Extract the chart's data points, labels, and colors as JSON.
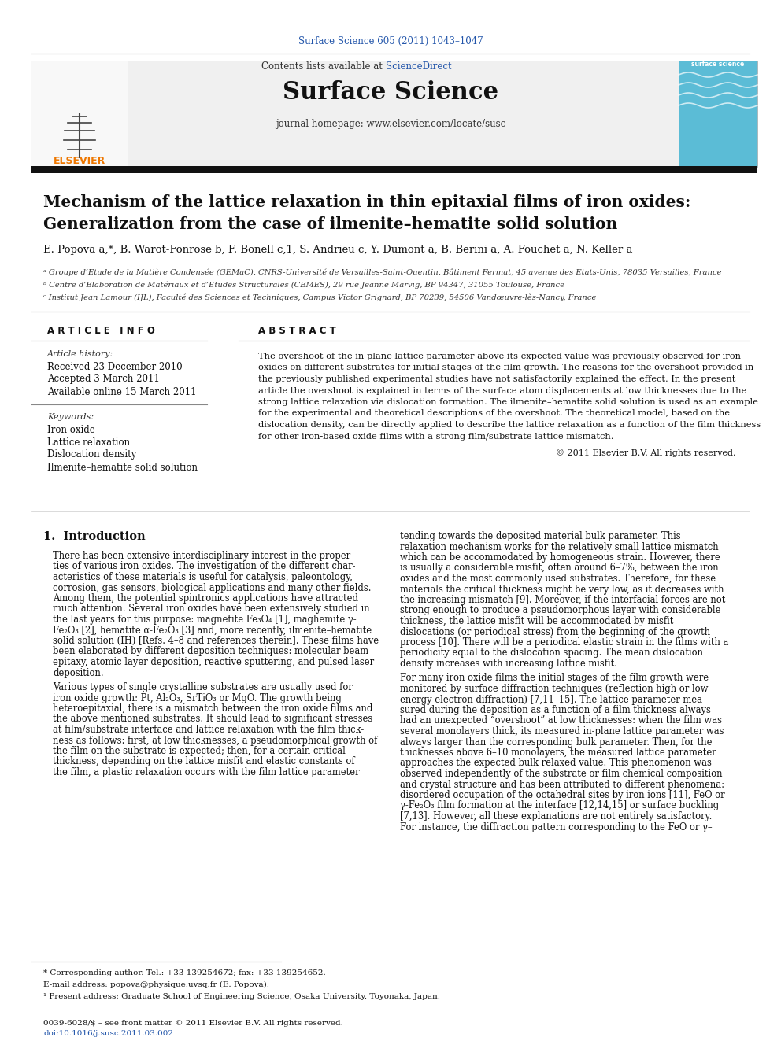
{
  "journal_ref": "Surface Science 605 (2011) 1043–1047",
  "journal_name": "Surface Science",
  "contents_text": "Contents lists available at ",
  "sciencedirect": "ScienceDirect",
  "journal_homepage": "journal homepage: www.elsevier.com/locate/susc",
  "title_line1": "Mechanism of the lattice relaxation in thin epitaxial films of iron oxides:",
  "title_line2": "Generalization from the case of ilmenite–hematite solid solution",
  "authors": "E. Popova a,*, B. Warot-Fonrose b, F. Bonell c,1, S. Andrieu c, Y. Dumont a, B. Berini a, A. Fouchet a, N. Keller a",
  "affil_a": "ᵃ Groupe d’Etude de la Matière Condensée (GEMaC), CNRS-Université de Versailles-Saint-Quentin, Bâtiment Fermat, 45 avenue des Etats-Unis, 78035 Versailles, France",
  "affil_b": "ᵇ Centre d’Elaboration de Matériaux et d’Etudes Structurales (CEMES), 29 rue Jeanne Marvig, BP 94347, 31055 Toulouse, France",
  "affil_c": "ᶜ Institut Jean Lamour (IJL), Faculté des Sciences et Techniques, Campus Victor Grignard, BP 70239, 54506 Vandœuvre-lès-Nancy, France",
  "article_info_header": "A R T I C L E   I N F O",
  "abstract_header": "A B S T R A C T",
  "article_history_label": "Article history:",
  "received": "Received 23 December 2010",
  "accepted": "Accepted 3 March 2011",
  "available": "Available online 15 March 2011",
  "keywords_label": "Keywords:",
  "keywords": [
    "Iron oxide",
    "Lattice relaxation",
    "Dislocation density",
    "Ilmenite–hematite solid solution"
  ],
  "abstract_lines": [
    "The overshoot of the in-plane lattice parameter above its expected value was previously observed for iron",
    "oxides on different substrates for initial stages of the film growth. The reasons for the overshoot provided in",
    "the previously published experimental studies have not satisfactorily explained the effect. In the present",
    "article the overshoot is explained in terms of the surface atom displacements at low thicknesses due to the",
    "strong lattice relaxation via dislocation formation. The ilmenite–hematite solid solution is used as an example",
    "for the experimental and theoretical descriptions of the overshoot. The theoretical model, based on the",
    "dislocation density, can be directly applied to describe the lattice relaxation as a function of the film thickness",
    "for other iron-based oxide films with a strong film/substrate lattice mismatch."
  ],
  "copyright": "© 2011 Elsevier B.V. All rights reserved.",
  "intro_header": "1.  Introduction",
  "intro1_lines": [
    "There has been extensive interdisciplinary interest in the proper-",
    "ties of various iron oxides. The investigation of the different char-",
    "acteristics of these materials is useful for catalysis, paleontology,",
    "corrosion, gas sensors, biological applications and many other fields.",
    "Among them, the potential spintronics applications have attracted",
    "much attention. Several iron oxides have been extensively studied in",
    "the last years for this purpose: magnetite Fe₃O₄ [1], maghemite γ-",
    "Fe₂O₃ [2], hematite α-Fe₂O₃ [3] and, more recently, ilmenite–hematite",
    "solid solution (IH) [Refs. 4–8 and references therein]. These films have",
    "been elaborated by different deposition techniques: molecular beam",
    "epitaxy, atomic layer deposition, reactive sputtering, and pulsed laser",
    "deposition."
  ],
  "intro2_lines": [
    "Various types of single crystalline substrates are usually used for",
    "iron oxide growth: Pt, Al₂O₃, SrTiO₃ or MgO. The growth being",
    "heteroepitaxial, there is a mismatch between the iron oxide films and",
    "the above mentioned substrates. It should lead to significant stresses",
    "at film/substrate interface and lattice relaxation with the film thick-",
    "ness as follows: first, at low thicknesses, a pseudomorphical growth of",
    "the film on the substrate is expected; then, for a certain critical",
    "thickness, depending on the lattice misfit and elastic constants of",
    "the film, a plastic relaxation occurs with the film lattice parameter"
  ],
  "right1_lines": [
    "tending towards the deposited material bulk parameter. This",
    "relaxation mechanism works for the relatively small lattice mismatch",
    "which can be accommodated by homogeneous strain. However, there",
    "is usually a considerable misfit, often around 6–7%, between the iron",
    "oxides and the most commonly used substrates. Therefore, for these",
    "materials the critical thickness might be very low, as it decreases with",
    "the increasing mismatch [9]. Moreover, if the interfacial forces are not",
    "strong enough to produce a pseudomorphous layer with considerable",
    "thickness, the lattice misfit will be accommodated by misfit",
    "dislocations (or periodical stress) from the beginning of the growth",
    "process [10]. There will be a periodical elastic strain in the films with a",
    "periodicity equal to the dislocation spacing. The mean dislocation",
    "density increases with increasing lattice misfit."
  ],
  "right2_lines": [
    "For many iron oxide films the initial stages of the film growth were",
    "monitored by surface diffraction techniques (reflection high or low",
    "energy electron diffraction) [7,11–15]. The lattice parameter mea-",
    "sured during the deposition as a function of a film thickness always",
    "had an unexpected “overshoot” at low thicknesses: when the film was",
    "several monolayers thick, its measured in-plane lattice parameter was",
    "always larger than the corresponding bulk parameter. Then, for the",
    "thicknesses above 6–10 monolayers, the measured lattice parameter",
    "approaches the expected bulk relaxed value. This phenomenon was",
    "observed independently of the substrate or film chemical composition",
    "and crystal structure and has been attributed to different phenomena:",
    "disordered occupation of the octahedral sites by iron ions [11], FeO or",
    "γ-Fe₂O₃ film formation at the interface [12,14,15] or surface buckling",
    "[7,13]. However, all these explanations are not entirely satisfactory.",
    "For instance, the diffraction pattern corresponding to the FeO or γ–"
  ],
  "footnote_star": "* Corresponding author. Tel.: +33 139254672; fax: +33 139254652.",
  "footnote_email": "E-mail address: popova@physique.uvsq.fr (E. Popova).",
  "footnote_1": "¹ Present address: Graduate School of Engineering Science, Osaka University, Toyonaka, Japan.",
  "footer_issn": "0039-6028/$ – see front matter © 2011 Elsevier B.V. All rights reserved.",
  "footer_doi": "doi:10.1016/j.susc.2011.03.002",
  "bg_color": "#ffffff",
  "link_color": "#2255aa",
  "orange_color": "#ee7700"
}
